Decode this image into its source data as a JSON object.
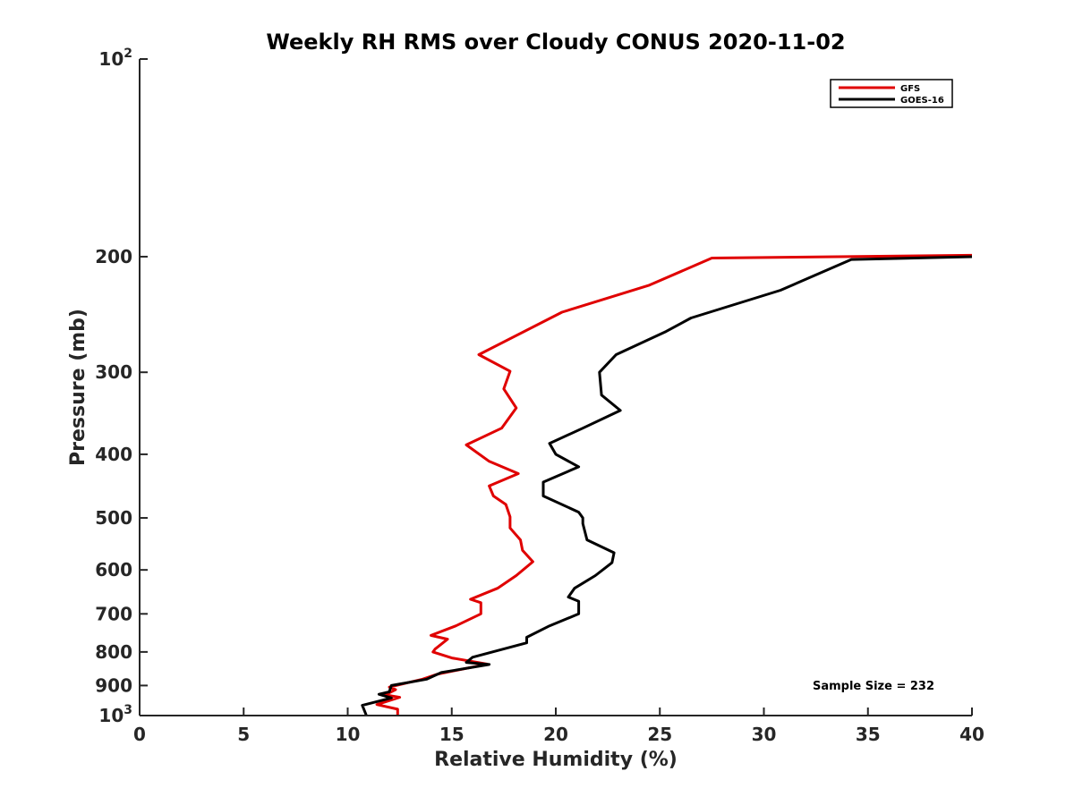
{
  "chart_data": {
    "type": "line",
    "title": "Weekly RH RMS over Cloudy CONUS 2020-11-02",
    "xlabel": "Relative Humidity (%)",
    "ylabel": "Pressure (mb)",
    "xlim": [
      0,
      40
    ],
    "ylim": [
      100,
      1000
    ],
    "y_scale": "log",
    "y_reversed": true,
    "grid": false,
    "legend_position": "top-right",
    "x_ticks": [
      0,
      5,
      10,
      15,
      20,
      25,
      30,
      35,
      40
    ],
    "x_tick_labels": [
      "0",
      "5",
      "10",
      "15",
      "20",
      "25",
      "30",
      "35",
      "40"
    ],
    "y_ticks": [
      100,
      200,
      300,
      400,
      500,
      600,
      700,
      800,
      900,
      1000
    ],
    "y_tick_labels": [
      {
        "base": "10",
        "exp": "2"
      },
      {
        "base": "200"
      },
      {
        "base": "300"
      },
      {
        "base": "400"
      },
      {
        "base": "500"
      },
      {
        "base": "600"
      },
      {
        "base": "700"
      },
      {
        "base": "800"
      },
      {
        "base": "900"
      },
      {
        "base": "10",
        "exp": "3"
      }
    ],
    "annotation": "Sample Size = 232",
    "series": [
      {
        "name": "GFS",
        "color": "#e00000",
        "points": [
          [
            40.0,
            199
          ],
          [
            27.5,
            201
          ],
          [
            24.5,
            221
          ],
          [
            20.3,
            243
          ],
          [
            16.3,
            282
          ],
          [
            17.8,
            299
          ],
          [
            17.5,
            318
          ],
          [
            18.1,
            340
          ],
          [
            17.4,
            365
          ],
          [
            15.7,
            387
          ],
          [
            16.8,
            410
          ],
          [
            18.2,
            428
          ],
          [
            16.8,
            447
          ],
          [
            17.0,
            463
          ],
          [
            17.6,
            477
          ],
          [
            17.8,
            498
          ],
          [
            17.8,
            518
          ],
          [
            18.3,
            540
          ],
          [
            18.4,
            560
          ],
          [
            18.9,
            583
          ],
          [
            18.1,
            612
          ],
          [
            17.2,
            640
          ],
          [
            15.9,
            665
          ],
          [
            16.4,
            673
          ],
          [
            16.4,
            700
          ],
          [
            15.2,
            730
          ],
          [
            14.0,
            755
          ],
          [
            14.8,
            765
          ],
          [
            14.2,
            792
          ],
          [
            14.1,
            800
          ],
          [
            15.0,
            817
          ],
          [
            16.7,
            835
          ],
          [
            14.3,
            865
          ],
          [
            13.6,
            880
          ],
          [
            12.0,
            905
          ],
          [
            12.3,
            913
          ],
          [
            11.8,
            930
          ],
          [
            12.5,
            938
          ],
          [
            11.4,
            962
          ],
          [
            12.4,
            978
          ],
          [
            12.4,
            1000
          ]
        ]
      },
      {
        "name": "GOES-16",
        "color": "#000000",
        "points": [
          [
            40.0,
            200
          ],
          [
            34.2,
            202
          ],
          [
            30.8,
            225
          ],
          [
            26.5,
            248
          ],
          [
            25.3,
            260
          ],
          [
            22.9,
            282
          ],
          [
            22.1,
            300
          ],
          [
            22.2,
            325
          ],
          [
            23.1,
            343
          ],
          [
            21.3,
            365
          ],
          [
            19.7,
            385
          ],
          [
            20.0,
            400
          ],
          [
            21.1,
            418
          ],
          [
            19.4,
            441
          ],
          [
            19.4,
            463
          ],
          [
            21.1,
            490
          ],
          [
            21.3,
            500
          ],
          [
            21.3,
            510
          ],
          [
            21.5,
            540
          ],
          [
            22.8,
            565
          ],
          [
            22.7,
            585
          ],
          [
            21.9,
            612
          ],
          [
            20.9,
            640
          ],
          [
            20.6,
            660
          ],
          [
            21.1,
            670
          ],
          [
            21.1,
            700
          ],
          [
            19.7,
            730
          ],
          [
            18.6,
            760
          ],
          [
            18.6,
            775
          ],
          [
            16.0,
            815
          ],
          [
            15.7,
            830
          ],
          [
            16.8,
            836
          ],
          [
            14.5,
            860
          ],
          [
            13.8,
            880
          ],
          [
            12.1,
            900
          ],
          [
            12.0,
            920
          ],
          [
            11.5,
            928
          ],
          [
            12.1,
            940
          ],
          [
            10.7,
            965
          ],
          [
            10.9,
            1000
          ]
        ]
      }
    ]
  }
}
